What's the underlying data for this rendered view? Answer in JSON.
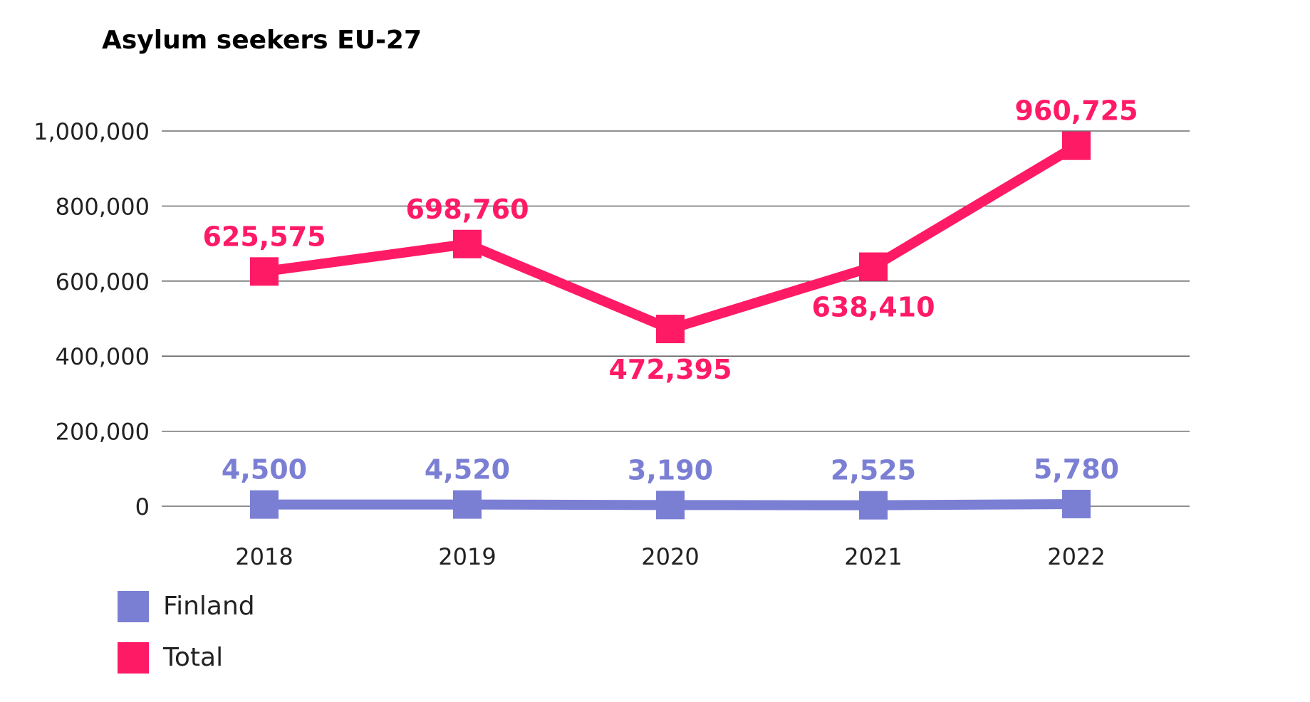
{
  "chart_data": {
    "type": "line",
    "title": "Asylum seekers EU-27",
    "categories": [
      "2018",
      "2019",
      "2020",
      "2021",
      "2022"
    ],
    "ylim": [
      0,
      1000000
    ],
    "yticks": [
      0,
      200000,
      400000,
      600000,
      800000,
      1000000
    ],
    "ytick_labels": [
      "0",
      "200,000",
      "400,000",
      "600,000",
      "800,000",
      "1,000,000"
    ],
    "grid": true,
    "legend_position": "bottom-left",
    "series": [
      {
        "name": "Finland",
        "color": "#7b7fd4",
        "values": [
          4500,
          4520,
          3190,
          2525,
          5780
        ],
        "labels": [
          "4,500",
          "4,520",
          "3,190",
          "2,525",
          "5,780"
        ],
        "label_positions": [
          "above",
          "above",
          "above",
          "above",
          "above"
        ]
      },
      {
        "name": "Total",
        "color": "#ff1a66",
        "values": [
          625575,
          698760,
          472395,
          638410,
          960725
        ],
        "labels": [
          "625,575",
          "698,760",
          "472,395",
          "638,410",
          "960,725"
        ],
        "label_positions": [
          "above",
          "above",
          "below",
          "below",
          "above"
        ]
      }
    ]
  }
}
